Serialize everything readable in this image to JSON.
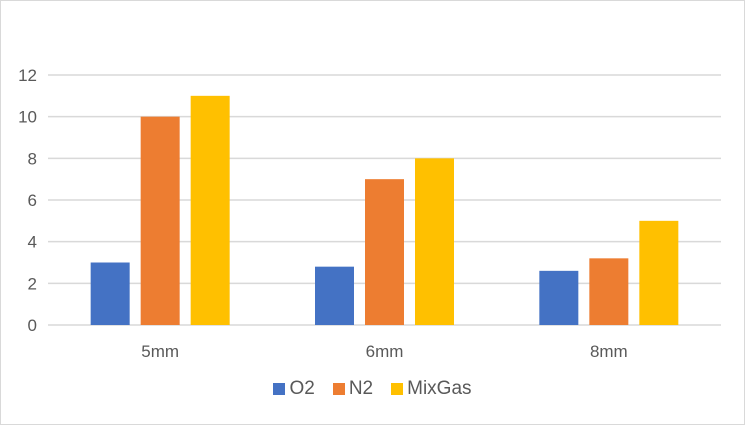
{
  "chart_data": {
    "type": "bar",
    "title": "",
    "xlabel": "",
    "ylabel": "",
    "categories": [
      "5mm",
      "6mm",
      "8mm"
    ],
    "series": [
      {
        "name": "O2",
        "color": "#4472c4",
        "values": [
          3,
          2.8,
          2.6
        ]
      },
      {
        "name": "N2",
        "color": "#ed7d31",
        "values": [
          10,
          7,
          3.2
        ]
      },
      {
        "name": "MixGas",
        "color": "#ffc000",
        "values": [
          11,
          8,
          5
        ]
      }
    ],
    "ylim": [
      0,
      12
    ],
    "yticks": [
      0,
      2,
      4,
      6,
      8,
      10,
      12
    ],
    "grid": true,
    "legend_position": "bottom"
  }
}
